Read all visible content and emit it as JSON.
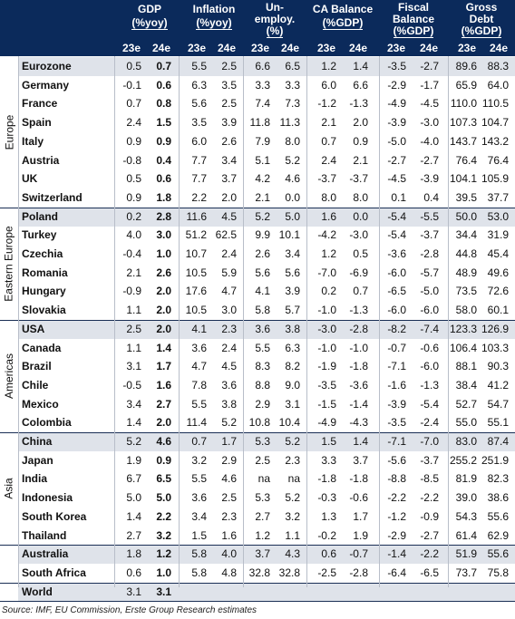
{
  "header": {
    "columns": [
      {
        "title": "GDP",
        "unit": "(%yoy)",
        "sub": [
          "23e",
          "24e"
        ]
      },
      {
        "title": "Inflation",
        "unit": "(%yoy)",
        "sub": [
          "23e",
          "24e"
        ]
      },
      {
        "title": "Un-",
        "title2": "employ.",
        "unit": "(%)",
        "sub": [
          "23e",
          "24e"
        ]
      },
      {
        "title": "CA Balance",
        "unit": "(%GDP)",
        "sub": [
          "23e",
          "24e"
        ]
      },
      {
        "title": "Fiscal",
        "title2": "Balance",
        "unit": "(%GDP)",
        "sub": [
          "23e",
          "24e"
        ]
      },
      {
        "title": "Gross",
        "title2": "Debt",
        "unit": "(%GDP)",
        "sub": [
          "23e",
          "24e"
        ]
      }
    ]
  },
  "regions": [
    "Europe",
    "Eastern Europe",
    "Americas",
    "Asia"
  ],
  "rows": [
    {
      "country": "Eurozone",
      "vals": [
        "0.5",
        "0.7",
        "5.5",
        "2.5",
        "6.6",
        "6.5",
        "1.2",
        "1.4",
        "-3.5",
        "-2.7",
        "89.6",
        "88.3"
      ]
    },
    {
      "country": "Germany",
      "vals": [
        "-0.1",
        "0.6",
        "6.3",
        "3.5",
        "3.3",
        "3.3",
        "6.0",
        "6.6",
        "-2.9",
        "-1.7",
        "65.9",
        "64.0"
      ]
    },
    {
      "country": "France",
      "vals": [
        "0.7",
        "0.8",
        "5.6",
        "2.5",
        "7.4",
        "7.3",
        "-1.2",
        "-1.3",
        "-4.9",
        "-4.5",
        "110.0",
        "110.5"
      ]
    },
    {
      "country": "Spain",
      "vals": [
        "2.4",
        "1.5",
        "3.5",
        "3.9",
        "11.8",
        "11.3",
        "2.1",
        "2.0",
        "-3.9",
        "-3.0",
        "107.3",
        "104.7"
      ]
    },
    {
      "country": "Italy",
      "vals": [
        "0.9",
        "0.9",
        "6.0",
        "2.6",
        "7.9",
        "8.0",
        "0.7",
        "0.9",
        "-5.0",
        "-4.0",
        "143.7",
        "143.2"
      ]
    },
    {
      "country": "Austria",
      "vals": [
        "-0.8",
        "0.4",
        "7.7",
        "3.4",
        "5.1",
        "5.2",
        "2.4",
        "2.1",
        "-2.7",
        "-2.7",
        "76.4",
        "76.4"
      ]
    },
    {
      "country": "UK",
      "vals": [
        "0.5",
        "0.6",
        "7.7",
        "3.7",
        "4.2",
        "4.6",
        "-3.7",
        "-3.7",
        "-4.5",
        "-3.9",
        "104.1",
        "105.9"
      ]
    },
    {
      "country": "Switzerland",
      "vals": [
        "0.9",
        "1.8",
        "2.2",
        "2.0",
        "2.1",
        "0.0",
        "8.0",
        "8.0",
        "0.1",
        "0.4",
        "39.5",
        "37.7"
      ]
    },
    {
      "country": "Poland",
      "vals": [
        "0.2",
        "2.8",
        "11.6",
        "4.5",
        "5.2",
        "5.0",
        "1.6",
        "0.0",
        "-5.4",
        "-5.5",
        "50.0",
        "53.0"
      ]
    },
    {
      "country": "Turkey",
      "vals": [
        "4.0",
        "3.0",
        "51.2",
        "62.5",
        "9.9",
        "10.1",
        "-4.2",
        "-3.0",
        "-5.4",
        "-3.7",
        "34.4",
        "31.9"
      ]
    },
    {
      "country": "Czechia",
      "vals": [
        "-0.4",
        "1.0",
        "10.7",
        "2.4",
        "2.6",
        "3.4",
        "1.2",
        "0.5",
        "-3.6",
        "-2.8",
        "44.8",
        "45.4"
      ]
    },
    {
      "country": "Romania",
      "vals": [
        "2.1",
        "2.6",
        "10.5",
        "5.9",
        "5.6",
        "5.6",
        "-7.0",
        "-6.9",
        "-6.0",
        "-5.7",
        "48.9",
        "49.6"
      ]
    },
    {
      "country": "Hungary",
      "vals": [
        "-0.9",
        "2.0",
        "17.6",
        "4.7",
        "4.1",
        "3.9",
        "0.2",
        "0.7",
        "-6.5",
        "-5.0",
        "73.5",
        "72.6"
      ]
    },
    {
      "country": "Slovakia",
      "vals": [
        "1.1",
        "2.0",
        "10.5",
        "3.0",
        "5.8",
        "5.7",
        "-1.0",
        "-1.3",
        "-6.0",
        "-6.0",
        "58.0",
        "60.1"
      ]
    },
    {
      "country": "USA",
      "vals": [
        "2.5",
        "2.0",
        "4.1",
        "2.3",
        "3.6",
        "3.8",
        "-3.0",
        "-2.8",
        "-8.2",
        "-7.4",
        "123.3",
        "126.9"
      ]
    },
    {
      "country": "Canada",
      "vals": [
        "1.1",
        "1.4",
        "3.6",
        "2.4",
        "5.5",
        "6.3",
        "-1.0",
        "-1.0",
        "-0.7",
        "-0.6",
        "106.4",
        "103.3"
      ]
    },
    {
      "country": "Brazil",
      "vals": [
        "3.1",
        "1.7",
        "4.7",
        "4.5",
        "8.3",
        "8.2",
        "-1.9",
        "-1.8",
        "-7.1",
        "-6.0",
        "88.1",
        "90.3"
      ]
    },
    {
      "country": "Chile",
      "vals": [
        "-0.5",
        "1.6",
        "7.8",
        "3.6",
        "8.8",
        "9.0",
        "-3.5",
        "-3.6",
        "-1.6",
        "-1.3",
        "38.4",
        "41.2"
      ]
    },
    {
      "country": "Mexico",
      "vals": [
        "3.4",
        "2.7",
        "5.5",
        "3.8",
        "2.9",
        "3.1",
        "-1.5",
        "-1.4",
        "-3.9",
        "-5.4",
        "52.7",
        "54.7"
      ]
    },
    {
      "country": "Colombia",
      "vals": [
        "1.4",
        "2.0",
        "11.4",
        "5.2",
        "10.8",
        "10.4",
        "-4.9",
        "-4.3",
        "-3.5",
        "-2.4",
        "55.0",
        "55.1"
      ]
    },
    {
      "country": "China",
      "vals": [
        "5.2",
        "4.6",
        "0.7",
        "1.7",
        "5.3",
        "5.2",
        "1.5",
        "1.4",
        "-7.1",
        "-7.0",
        "83.0",
        "87.4"
      ]
    },
    {
      "country": "Japan",
      "vals": [
        "1.9",
        "0.9",
        "3.2",
        "2.9",
        "2.5",
        "2.3",
        "3.3",
        "3.7",
        "-5.6",
        "-3.7",
        "255.2",
        "251.9"
      ]
    },
    {
      "country": "India",
      "vals": [
        "6.7",
        "6.5",
        "5.5",
        "4.6",
        "na",
        "na",
        "-1.8",
        "-1.8",
        "-8.8",
        "-8.5",
        "81.9",
        "82.3"
      ]
    },
    {
      "country": "Indonesia",
      "vals": [
        "5.0",
        "5.0",
        "3.6",
        "2.5",
        "5.3",
        "5.2",
        "-0.3",
        "-0.6",
        "-2.2",
        "-2.2",
        "39.0",
        "38.6"
      ]
    },
    {
      "country": "South Korea",
      "vals": [
        "1.4",
        "2.2",
        "3.4",
        "2.3",
        "2.7",
        "3.2",
        "1.3",
        "1.7",
        "-1.2",
        "-0.9",
        "54.3",
        "55.6"
      ]
    },
    {
      "country": "Thailand",
      "vals": [
        "2.7",
        "3.2",
        "1.5",
        "1.6",
        "1.2",
        "1.1",
        "-0.2",
        "1.9",
        "-2.9",
        "-2.7",
        "61.4",
        "62.9"
      ]
    },
    {
      "country": "Australia",
      "vals": [
        "1.8",
        "1.2",
        "5.8",
        "4.0",
        "3.7",
        "4.3",
        "0.6",
        "-0.7",
        "-1.4",
        "-2.2",
        "51.9",
        "55.6"
      ]
    },
    {
      "country": "South Africa",
      "vals": [
        "0.6",
        "1.0",
        "5.8",
        "4.8",
        "32.8",
        "32.8",
        "-2.5",
        "-2.8",
        "-6.4",
        "-6.5",
        "73.7",
        "75.8"
      ]
    },
    {
      "country": "World",
      "vals": [
        "3.1",
        "3.1",
        "",
        "",
        "",
        "",
        "",
        "",
        "",
        "",
        "",
        ""
      ]
    }
  ],
  "source": "Source: IMF, EU Commission, Erste Group Research estimates"
}
